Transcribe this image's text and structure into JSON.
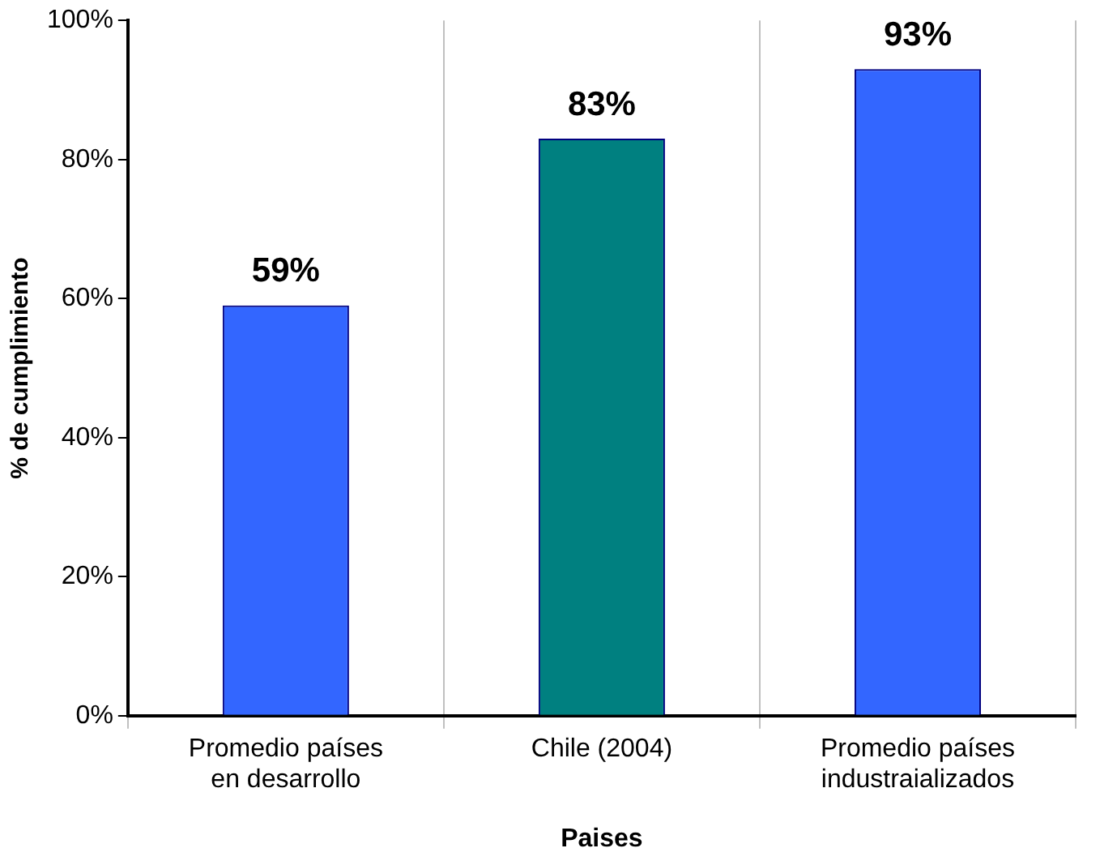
{
  "chart_data": {
    "type": "bar",
    "categories": [
      "Promedio países en desarrollo",
      "Chile (2004)",
      "Promedio países industraializados"
    ],
    "values": [
      59,
      83,
      93
    ],
    "colors": [
      "#3366ff",
      "#008080",
      "#3366ff"
    ],
    "value_labels": [
      "59%",
      "83%",
      "93%"
    ],
    "xlabel": "Paises",
    "ylabel": "% de cumplimiento",
    "ylim": [
      0,
      100
    ],
    "yticks": [
      {
        "value": 0,
        "label": "0%"
      },
      {
        "value": 20,
        "label": "20%"
      },
      {
        "value": 40,
        "label": "40%"
      },
      {
        "value": 60,
        "label": "60%"
      },
      {
        "value": 80,
        "label": "80%"
      },
      {
        "value": 100,
        "label": "100%"
      }
    ],
    "grid": "x",
    "legend": false
  }
}
